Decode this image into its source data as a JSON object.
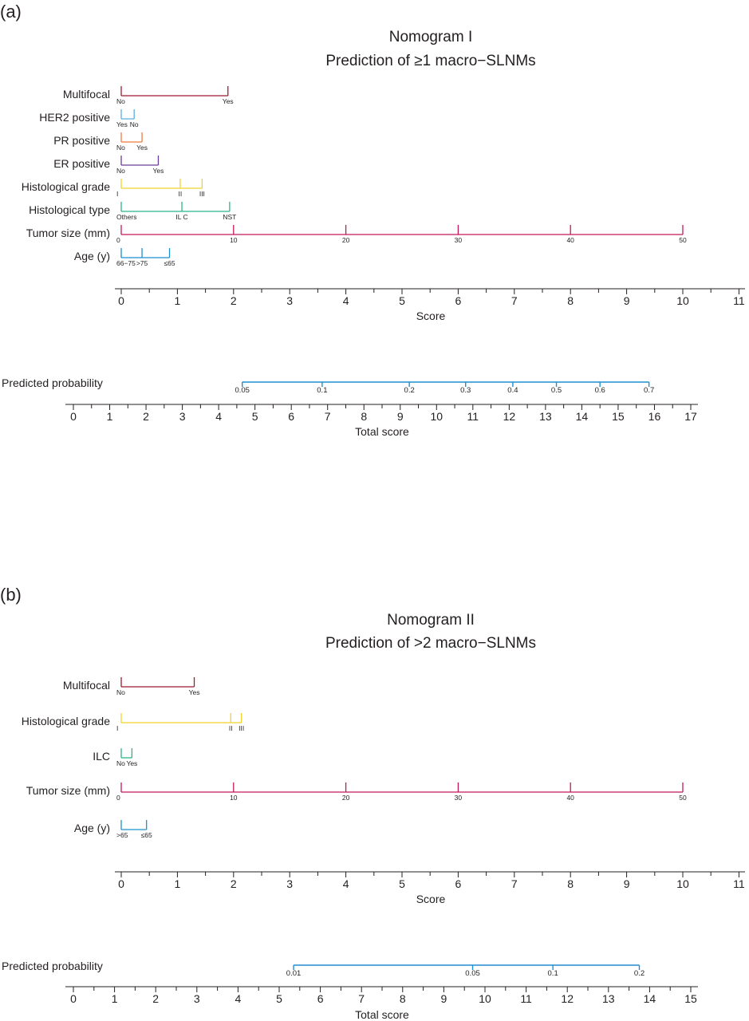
{
  "panels": [
    {
      "id": "a",
      "label": "(a)",
      "title_line1": "Nomogram I",
      "title_line2": "Prediction of ≥1 macro−SLNMs",
      "variables": [
        {
          "name": "Multifocal",
          "color": "#9e1b32",
          "ticks": [
            {
              "score": 0,
              "label": "No"
            },
            {
              "score": 1.9,
              "label": "Yes"
            }
          ]
        },
        {
          "name": "HER2 positive",
          "color": "#5aaee0",
          "ticks": [
            {
              "score": 0,
              "label": "Yes"
            },
            {
              "score": 0.23,
              "label": "No"
            }
          ]
        },
        {
          "name": "PR positive",
          "color": "#f07b3f",
          "ticks": [
            {
              "score": 0,
              "label": "No"
            },
            {
              "score": 0.37,
              "label": "Yes"
            }
          ]
        },
        {
          "name": "ER positive",
          "color": "#6a3d9a",
          "ticks": [
            {
              "score": 0,
              "label": "No"
            },
            {
              "score": 0.66,
              "label": "Yes"
            }
          ]
        },
        {
          "name": "Histological grade",
          "color": "#f2d22e",
          "ticks": [
            {
              "score": 0,
              "label": "I"
            },
            {
              "score": 1.05,
              "label": "II"
            },
            {
              "score": 1.44,
              "label": "III"
            }
          ]
        },
        {
          "name": "Histological type",
          "color": "#2bb58a",
          "ticks": [
            {
              "score": 0,
              "label": "Others"
            },
            {
              "score": 1.08,
              "label": "IL C"
            },
            {
              "score": 1.93,
              "label": "NST"
            }
          ]
        },
        {
          "name": "Tumor size (mm)",
          "color": "#c2185b",
          "ticks": [
            {
              "score": 0,
              "label": "0"
            },
            {
              "score": 2,
              "label": "10"
            },
            {
              "score": 4,
              "label": "20"
            },
            {
              "score": 6,
              "label": "30"
            },
            {
              "score": 8,
              "label": "40"
            },
            {
              "score": 10,
              "label": "50"
            }
          ]
        },
        {
          "name": "Age (y)",
          "color": "#1f8fd0",
          "ticks": [
            {
              "score": 0,
              "label": "66−75"
            },
            {
              "score": 0.37,
              "label": ">75"
            },
            {
              "score": 0.86,
              "label": "≤65"
            }
          ]
        }
      ],
      "score_axis": {
        "label": "Score",
        "min": 0,
        "max": 11,
        "ticks": [
          0,
          1,
          2,
          3,
          4,
          5,
          6,
          7,
          8,
          9,
          10,
          11
        ]
      },
      "probability": {
        "label": "Predicted probability",
        "color": "#1f8fd0",
        "ticks": [
          {
            "total": 4.65,
            "label": "0.05"
          },
          {
            "total": 6.85,
            "label": "0.1"
          },
          {
            "total": 9.25,
            "label": "0.2"
          },
          {
            "total": 10.8,
            "label": "0.3"
          },
          {
            "total": 12.1,
            "label": "0.4"
          },
          {
            "total": 13.3,
            "label": "0.5"
          },
          {
            "total": 14.5,
            "label": "0.6"
          },
          {
            "total": 15.85,
            "label": "0.7"
          }
        ]
      },
      "total_axis": {
        "label": "Total score",
        "min": 0,
        "max": 17,
        "ticks": [
          0,
          1,
          2,
          3,
          4,
          5,
          6,
          7,
          8,
          9,
          10,
          11,
          12,
          13,
          14,
          15,
          16,
          17
        ]
      }
    },
    {
      "id": "b",
      "label": "(b)",
      "title_line1": "Nomogram II",
      "title_line2": "Prediction of >2 macro−SLNMs",
      "variables": [
        {
          "name": "Multifocal",
          "color": "#9e1b32",
          "ticks": [
            {
              "score": 0,
              "label": "No"
            },
            {
              "score": 1.3,
              "label": "Yes"
            }
          ]
        },
        {
          "name": "Histological grade",
          "color": "#f2d22e",
          "ticks": [
            {
              "score": 0,
              "label": "I"
            },
            {
              "score": 1.95,
              "label": "II"
            },
            {
              "score": 2.14,
              "label": "III"
            }
          ]
        },
        {
          "name": "ILC",
          "color": "#2bb58a",
          "ticks": [
            {
              "score": 0,
              "label": "No"
            },
            {
              "score": 0.19,
              "label": "Yes"
            }
          ]
        },
        {
          "name": "Tumor size (mm)",
          "color": "#c2185b",
          "ticks": [
            {
              "score": 0,
              "label": "0"
            },
            {
              "score": 2,
              "label": "10"
            },
            {
              "score": 4,
              "label": "20"
            },
            {
              "score": 6,
              "label": "30"
            },
            {
              "score": 8,
              "label": "40"
            },
            {
              "score": 10,
              "label": "50"
            }
          ]
        },
        {
          "name": "Age (y)",
          "color": "#1f8fd0",
          "ticks": [
            {
              "score": 0,
              "label": ">65"
            },
            {
              "score": 0.45,
              "label": "≤65"
            }
          ]
        }
      ],
      "score_axis": {
        "label": "Score",
        "min": 0,
        "max": 11,
        "ticks": [
          0,
          1,
          2,
          3,
          4,
          5,
          6,
          7,
          8,
          9,
          10,
          11
        ]
      },
      "probability": {
        "label": "Predicted probability",
        "color": "#1f8fd0",
        "ticks": [
          {
            "total": 5.35,
            "label": "0.01"
          },
          {
            "total": 9.7,
            "label": "0.05"
          },
          {
            "total": 11.65,
            "label": "0.1"
          },
          {
            "total": 13.75,
            "label": "0.2"
          }
        ]
      },
      "total_axis": {
        "label": "Total score",
        "min": 0,
        "max": 15,
        "ticks": [
          0,
          1,
          2,
          3,
          4,
          5,
          6,
          7,
          8,
          9,
          10,
          11,
          12,
          13,
          14,
          15
        ]
      }
    }
  ],
  "chart_data": [
    {
      "type": "nomogram",
      "title": "Nomogram I — Prediction of ≥1 macro−SLNMs",
      "xlabel": "Score",
      "xlim": [
        0,
        11
      ],
      "series": [
        {
          "name": "Multifocal",
          "points": [
            [
              "No",
              0
            ],
            [
              "Yes",
              1.9
            ]
          ]
        },
        {
          "name": "HER2 positive",
          "points": [
            [
              "Yes",
              0
            ],
            [
              "No",
              0.23
            ]
          ]
        },
        {
          "name": "PR positive",
          "points": [
            [
              "No",
              0
            ],
            [
              "Yes",
              0.37
            ]
          ]
        },
        {
          "name": "ER positive",
          "points": [
            [
              "No",
              0
            ],
            [
              "Yes",
              0.66
            ]
          ]
        },
        {
          "name": "Histological grade",
          "points": [
            [
              "I",
              0
            ],
            [
              "II",
              1.05
            ],
            [
              "III",
              1.44
            ]
          ]
        },
        {
          "name": "Histological type",
          "points": [
            [
              "Others",
              0
            ],
            [
              "IL C",
              1.08
            ],
            [
              "NST",
              1.93
            ]
          ]
        },
        {
          "name": "Tumor size (mm)",
          "points": [
            [
              "0",
              0
            ],
            [
              "10",
              2
            ],
            [
              "20",
              4
            ],
            [
              "30",
              6
            ],
            [
              "40",
              8
            ],
            [
              "50",
              10
            ]
          ]
        },
        {
          "name": "Age (y)",
          "points": [
            [
              "66−75",
              0
            ],
            [
              ">75",
              0.37
            ],
            [
              "≤65",
              0.86
            ]
          ]
        }
      ],
      "total_score_range": [
        0,
        17
      ],
      "predicted_probability": [
        [
          4.65,
          0.05
        ],
        [
          6.85,
          0.1
        ],
        [
          9.25,
          0.2
        ],
        [
          10.8,
          0.3
        ],
        [
          12.1,
          0.4
        ],
        [
          13.3,
          0.5
        ],
        [
          14.5,
          0.6
        ],
        [
          15.85,
          0.7
        ]
      ]
    },
    {
      "type": "nomogram",
      "title": "Nomogram II — Prediction of >2 macro−SLNMs",
      "xlabel": "Score",
      "xlim": [
        0,
        11
      ],
      "series": [
        {
          "name": "Multifocal",
          "points": [
            [
              "No",
              0
            ],
            [
              "Yes",
              1.3
            ]
          ]
        },
        {
          "name": "Histological grade",
          "points": [
            [
              "I",
              0
            ],
            [
              "II",
              1.95
            ],
            [
              "III",
              2.14
            ]
          ]
        },
        {
          "name": "ILC",
          "points": [
            [
              "No",
              0
            ],
            [
              "Yes",
              0.19
            ]
          ]
        },
        {
          "name": "Tumor size (mm)",
          "points": [
            [
              "0",
              0
            ],
            [
              "10",
              2
            ],
            [
              "20",
              4
            ],
            [
              "30",
              6
            ],
            [
              "40",
              8
            ],
            [
              "50",
              10
            ]
          ]
        },
        {
          "name": "Age (y)",
          "points": [
            [
              ">65",
              0
            ],
            [
              "≤65",
              0.45
            ]
          ]
        }
      ],
      "total_score_range": [
        0,
        15
      ],
      "predicted_probability": [
        [
          5.35,
          0.01
        ],
        [
          9.7,
          0.05
        ],
        [
          11.65,
          0.1
        ],
        [
          13.75,
          0.2
        ]
      ]
    }
  ]
}
